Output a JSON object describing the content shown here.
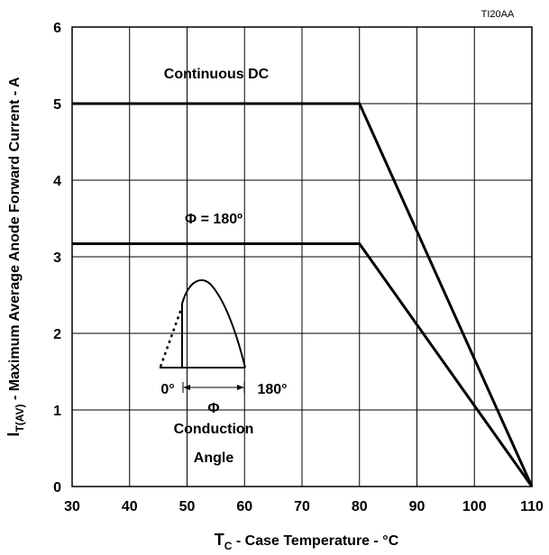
{
  "chart_data": {
    "type": "line",
    "reference_code": "TI20AA",
    "xlabel_main": "T",
    "xlabel_sub": "C",
    "xlabel_rest": " - Case Temperature - °C",
    "ylabel_main": "I",
    "ylabel_sub": "T(AV)",
    "ylabel_rest": " - Maximum Average Anode Forward Current - A",
    "xlim": [
      30,
      110
    ],
    "ylim": [
      0,
      6
    ],
    "x_ticks": [
      30,
      40,
      50,
      60,
      70,
      80,
      90,
      100,
      110
    ],
    "y_ticks": [
      0,
      1,
      2,
      3,
      4,
      5,
      6
    ],
    "grid": true,
    "series": [
      {
        "name": "Continuous DC",
        "x": [
          30,
          80,
          110
        ],
        "y": [
          5,
          5,
          0
        ]
      },
      {
        "name": "Φ = 180º",
        "x": [
          30,
          80,
          110
        ],
        "y": [
          3.17,
          3.17,
          0
        ]
      }
    ],
    "inset": {
      "start_label": "0°",
      "end_label": "180°",
      "phi_label": "Φ",
      "caption_line1": "Conduction",
      "caption_line2": "Angle"
    }
  }
}
